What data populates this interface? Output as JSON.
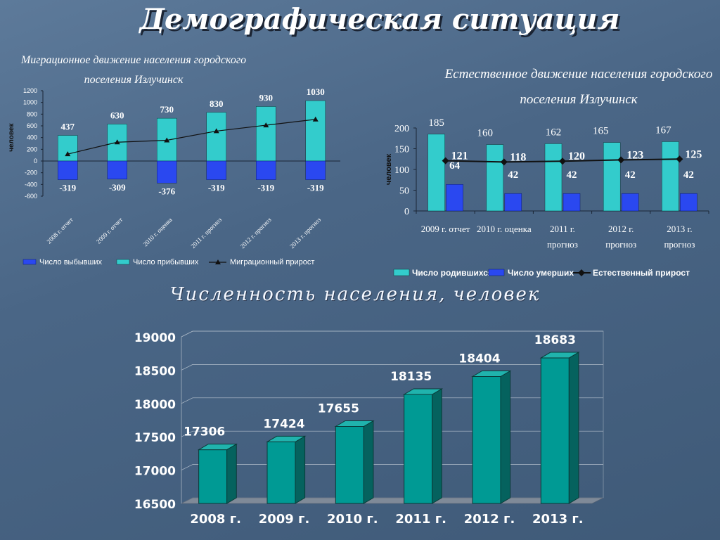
{
  "title": "Демографическая ситуация",
  "chart_data": [
    {
      "type": "bar",
      "title": "Миграционное движение населения городского поселения Излучинск",
      "ylabel": "человек",
      "ylim": [
        -600,
        1200
      ],
      "yticks": [
        "1200",
        "1000",
        "800",
        "600",
        "400",
        "200",
        "0",
        "-200",
        "-400",
        "-600"
      ],
      "categories": [
        "2008 г. отчет",
        "2009 г. отчет",
        "2010 г. оценка",
        "2011 г. прогноз",
        "2012 г. прогноз",
        "2013 г. прогноз"
      ],
      "series": [
        {
          "name": "Число выбывших",
          "values": [
            -319,
            -309,
            -376,
            -319,
            -319,
            -319
          ],
          "labels": [
            "-319",
            "-309",
            "-376",
            "-319",
            "-319",
            "-319"
          ],
          "color": "#2a48f0"
        },
        {
          "name": "Число прибывших",
          "values": [
            437,
            630,
            730,
            830,
            930,
            1030
          ],
          "labels": [
            "437",
            "630",
            "730",
            "830",
            "930",
            "1030"
          ],
          "color": "#33cccc"
        },
        {
          "name": "Миграционный прирост",
          "type": "line",
          "values": [
            118,
            321,
            354,
            511,
            611,
            711
          ],
          "color": "#111111"
        }
      ],
      "legend": [
        "Число выбывших",
        "Число прибывших",
        "Миграционный прирост"
      ],
      "legend_position": "bottom"
    },
    {
      "type": "bar",
      "title": "Естественное движение населения городского поселения Излучинск",
      "ylabel": "человек",
      "ylim": [
        0,
        200
      ],
      "yticks": [
        "200",
        "150",
        "100",
        "50",
        "0"
      ],
      "categories": [
        [
          "2009 г. отчет"
        ],
        [
          "2010 г. оценка"
        ],
        [
          "2011 г.",
          "прогноз"
        ],
        [
          "2012 г.",
          "прогноз"
        ],
        [
          "2013 г.",
          "прогноз"
        ]
      ],
      "series": [
        {
          "name": "Число родившихся",
          "values": [
            185,
            160,
            162,
            165,
            167
          ],
          "labels": [
            "185",
            "160",
            "162",
            "165",
            "167"
          ],
          "color": "#33cccc"
        },
        {
          "name": "Число умерших",
          "values": [
            64,
            42,
            42,
            42,
            42
          ],
          "labels": [
            "64",
            "42",
            "42",
            "42",
            "42"
          ],
          "color": "#2a48f0"
        },
        {
          "name": "Естественный прирост",
          "type": "line",
          "values": [
            121,
            118,
            120,
            123,
            125
          ],
          "labels": [
            "121",
            "118",
            "120",
            "123",
            "125"
          ],
          "color": "#111111"
        }
      ],
      "legend": [
        "Число родившихся",
        "Число умерших",
        "Естественный прирост"
      ],
      "legend_position": "bottom"
    },
    {
      "type": "bar",
      "title": "Численность населения, человек",
      "ylim": [
        16500,
        19000
      ],
      "yticks": [
        "19000",
        "18500",
        "18000",
        "17500",
        "17000",
        "16500"
      ],
      "categories": [
        "2008 г.",
        "2009 г.",
        "2010 г.",
        "2011 г.",
        "2012 г.",
        "2013 г."
      ],
      "series": [
        {
          "values": [
            17306,
            17424,
            17655,
            18135,
            18404,
            18683
          ],
          "labels": [
            "17306",
            "17424",
            "17655",
            "18135",
            "18404",
            "18683"
          ],
          "color": "#009a94"
        }
      ]
    }
  ]
}
